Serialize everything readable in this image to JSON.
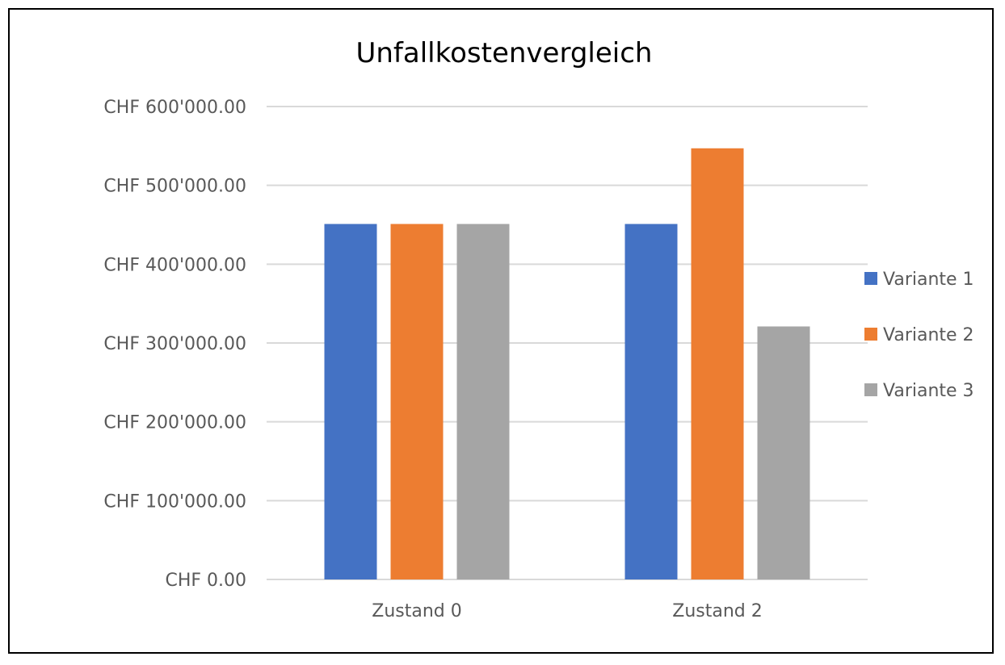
{
  "chart_data": {
    "type": "bar",
    "title": "Unfallkostenvergleich",
    "xlabel": "",
    "ylabel": "",
    "categories": [
      "Zustand 0",
      "Zustand 2"
    ],
    "series": [
      {
        "name": "Variante 1",
        "color": "#4472C4",
        "values": [
          451000,
          451000
        ]
      },
      {
        "name": "Variante 2",
        "color": "#ED7D31",
        "values": [
          451000,
          547000
        ]
      },
      {
        "name": "Variante 3",
        "color": "#A5A5A5",
        "values": [
          451000,
          321000
        ]
      }
    ],
    "ylim": [
      0,
      600000
    ],
    "yticks": [
      {
        "value": 0,
        "label": "CHF 0.00"
      },
      {
        "value": 100000,
        "label": "CHF 100'000.00"
      },
      {
        "value": 200000,
        "label": "CHF 200'000.00"
      },
      {
        "value": 300000,
        "label": "CHF 300'000.00"
      },
      {
        "value": 400000,
        "label": "CHF 400'000.00"
      },
      {
        "value": 500000,
        "label": "CHF 500'000.00"
      },
      {
        "value": 600000,
        "label": "CHF 600'000.00"
      }
    ],
    "grid": true,
    "legend_position": "right",
    "colors": {
      "grid": "#D9D9D9",
      "text": "#595959",
      "title": "#000000"
    }
  }
}
